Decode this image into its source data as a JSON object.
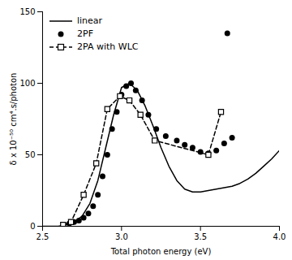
{
  "chart_data": {
    "type": "line",
    "xlabel": "Total photon energy (eV)",
    "ylabel": "δ x 10⁻⁵⁰ cm⁴.s/photon",
    "xlim": [
      2.5,
      4.0
    ],
    "ylim": [
      0,
      150
    ],
    "xticks": [
      2.5,
      {
        "value": 3.0,
        "label": "3.0"
      },
      3.5,
      {
        "value": 4.0,
        "label": "4.0"
      }
    ],
    "yticks": [
      0,
      50,
      100,
      150
    ],
    "grid": false,
    "legend": "upper left",
    "series": [
      {
        "name": "linear",
        "type": "line",
        "color": "#000000",
        "line_style": "solid",
        "x": [
          2.5,
          2.55,
          2.6,
          2.65,
          2.7,
          2.75,
          2.8,
          2.85,
          2.9,
          2.95,
          3.0,
          3.05,
          3.1,
          3.15,
          3.2,
          3.25,
          3.3,
          3.35,
          3.4,
          3.45,
          3.5,
          3.55,
          3.6,
          3.65,
          3.7,
          3.75,
          3.8,
          3.85,
          3.9,
          3.95,
          4.0
        ],
        "values": [
          0,
          0,
          0,
          1,
          3,
          7,
          16,
          32,
          55,
          78,
          97,
          100,
          95,
          84,
          70,
          55,
          42,
          32,
          26,
          24,
          24,
          25,
          26,
          27,
          28,
          30,
          33,
          37,
          42,
          47,
          53
        ]
      },
      {
        "name": "2PF",
        "type": "scatter",
        "color": "#000000",
        "marker": "circle",
        "x": [
          2.67,
          2.7,
          2.73,
          2.76,
          2.79,
          2.82,
          2.85,
          2.88,
          2.91,
          2.94,
          2.97,
          3.0,
          3.03,
          3.06,
          3.09,
          3.13,
          3.17,
          3.22,
          3.28,
          3.35,
          3.4,
          3.45,
          3.5,
          3.55,
          3.6,
          3.65,
          3.7,
          3.67
        ],
        "values": [
          2,
          3,
          4,
          6,
          9,
          14,
          22,
          35,
          50,
          68,
          80,
          92,
          98,
          100,
          95,
          88,
          78,
          68,
          63,
          60,
          57,
          55,
          52,
          51,
          53,
          58,
          62,
          135
        ]
      },
      {
        "name": "2PA with WLC",
        "type": "line",
        "color": "#000000",
        "line_style": "dashed",
        "marker": "square",
        "x": [
          2.63,
          2.68,
          2.76,
          2.84,
          2.91,
          2.99,
          3.05,
          3.12,
          3.21,
          3.55,
          3.63
        ],
        "values": [
          1,
          3,
          22,
          44,
          82,
          91,
          88,
          78,
          60,
          50,
          80
        ]
      }
    ]
  }
}
